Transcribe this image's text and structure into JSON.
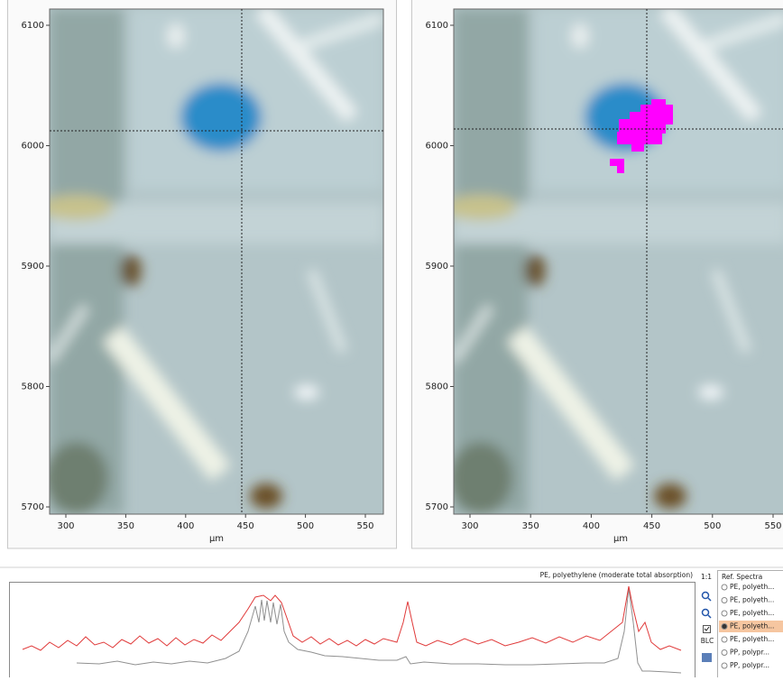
{
  "left_view": {
    "y_ticks": [
      6100,
      6000,
      5900,
      5800,
      5700
    ],
    "x_ticks": [
      300,
      350,
      400,
      450,
      500,
      550
    ],
    "x_label": "µm"
  },
  "right_view": {
    "y_ticks": [
      6100,
      6000,
      5900,
      5800,
      5700
    ],
    "x_ticks": [
      300,
      350,
      400,
      450,
      500,
      550
    ],
    "x_label": "µm"
  },
  "spectrum": {
    "title": "PE, polyethylene (moderate total absorption)",
    "zoom_label": "1:1",
    "blc_label": "BLC"
  },
  "ref_spectra": {
    "title": "Ref. Spectra",
    "items": [
      "PE, polyeth...",
      "PE, polyeth...",
      "PE, polyeth...",
      "PE, polyeth...",
      "PE, polyeth...",
      "PP, polypr...",
      "PP, polypr..."
    ],
    "selected": 3
  }
}
